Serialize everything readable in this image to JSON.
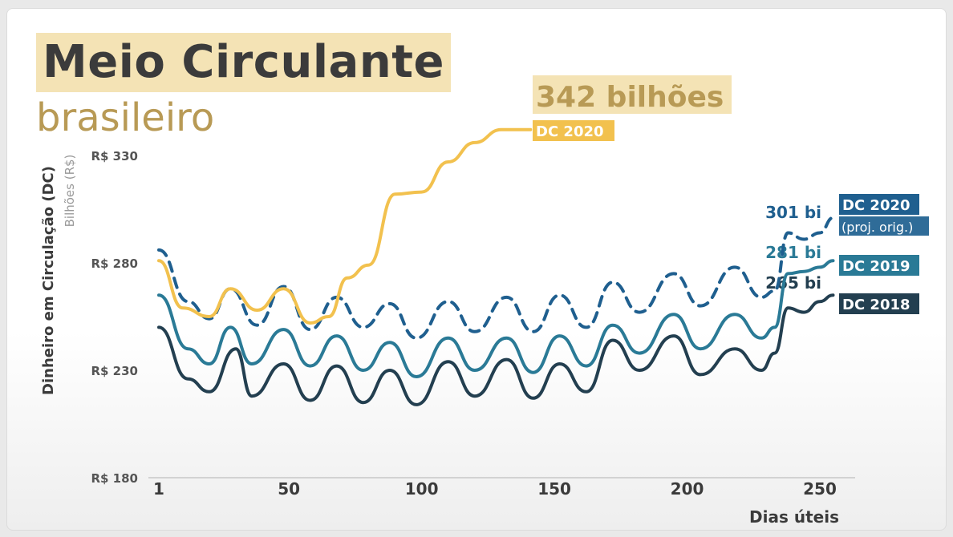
{
  "header": {
    "title": "Meio Circulante",
    "subtitle": "brasileiro"
  },
  "chart_data": {
    "type": "line",
    "title": "Meio Circulante",
    "subtitle": "brasileiro",
    "ylabel": "Dinheiro em Circulação (DC)",
    "ylabel_sub": "Bilhões (R$)",
    "xlabel": "Dias úteis",
    "x_ticks": [
      "1",
      "50",
      "100",
      "150",
      "200",
      "250"
    ],
    "y_ticks": [
      "R$ 180",
      "R$ 230",
      "R$ 280",
      "R$ 330"
    ],
    "x_tick_values": [
      1,
      50,
      100,
      150,
      200,
      250
    ],
    "y_tick_values": [
      180,
      230,
      280,
      330
    ],
    "xlim": [
      1,
      255
    ],
    "ylim": [
      180,
      330
    ],
    "grid": false,
    "colors": {
      "dc2020": "#f2c14e",
      "dc2020_proj": "#1f5f8f",
      "dc2019": "#2a7a96",
      "dc2018": "#233f50",
      "highlight_bg": "#f4e3b5",
      "text_gold": "#b89a55"
    },
    "callouts": {
      "headline": "342 bilhões",
      "dc2020_label": "DC 2020",
      "proj_value": "301 bi",
      "dc2019_value": "281 bi",
      "dc2018_value": "265 bi",
      "proj_label": "DC 2020",
      "proj_note": "(proj. orig.)",
      "dc2019_label": "DC 2019",
      "dc2018_label": "DC 2018"
    },
    "series": [
      {
        "key": "dc2020",
        "style": "solid",
        "x": [
          1,
          10,
          20,
          28,
          38,
          48,
          58,
          65,
          72,
          80,
          90,
          100,
          110,
          120,
          130,
          141
        ],
        "y": [
          281,
          259,
          255,
          268,
          258,
          268,
          252,
          255,
          273,
          279,
          312,
          313,
          327,
          336,
          342,
          342
        ]
      },
      {
        "key": "dc2020_proj",
        "style": "dashed",
        "x": [
          1,
          12,
          20,
          28,
          38,
          48,
          58,
          68,
          78,
          88,
          98,
          110,
          120,
          132,
          142,
          152,
          162,
          172,
          182,
          195,
          205,
          218,
          228,
          233,
          238,
          244,
          250,
          255
        ],
        "y": [
          286,
          262,
          254,
          268,
          251,
          269,
          249,
          264,
          250,
          261,
          245,
          262,
          248,
          264,
          248,
          265,
          250,
          271,
          257,
          275,
          260,
          278,
          264,
          267,
          294,
          291,
          294,
          301
        ]
      },
      {
        "key": "dc2019",
        "style": "solid",
        "x": [
          1,
          12,
          20,
          28,
          36,
          48,
          58,
          68,
          78,
          88,
          98,
          110,
          120,
          132,
          142,
          152,
          162,
          172,
          182,
          195,
          205,
          218,
          228,
          233,
          238,
          244,
          250,
          255
        ],
        "y": [
          265,
          240,
          233,
          250,
          233,
          249,
          232,
          246,
          230,
          243,
          227,
          245,
          230,
          245,
          229,
          246,
          232,
          251,
          238,
          256,
          240,
          256,
          245,
          250,
          275,
          276,
          278,
          281
        ]
      },
      {
        "key": "dc2018",
        "style": "solid",
        "x": [
          1,
          12,
          20,
          30,
          36,
          48,
          58,
          68,
          78,
          88,
          98,
          110,
          120,
          132,
          142,
          152,
          162,
          172,
          182,
          195,
          205,
          218,
          228,
          233,
          238,
          244,
          250,
          255
        ],
        "y": [
          250,
          226,
          220,
          240,
          218,
          233,
          216,
          232,
          215,
          230,
          214,
          234,
          218,
          235,
          217,
          233,
          220,
          244,
          230,
          246,
          228,
          240,
          230,
          238,
          259,
          257,
          262,
          265
        ]
      }
    ]
  }
}
